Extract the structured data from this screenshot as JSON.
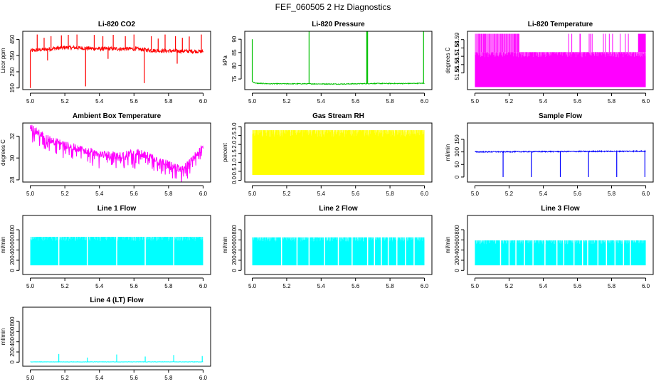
{
  "figure_title": "FEF_060505  2 Hz Diagnostics",
  "chart_data": [
    {
      "type": "line",
      "title": "Li-820 CO2",
      "ylabel": "Licor ppm",
      "color": "#ff0000",
      "x_range": [
        5.0,
        6.0
      ],
      "xticks": [
        5.0,
        5.2,
        5.4,
        5.6,
        5.8,
        6.0
      ],
      "xtick_labels": [
        "5.0",
        "5.2",
        "5.4",
        "5.6",
        "5.8",
        "6.0"
      ],
      "ylim": [
        140,
        500
      ],
      "yticks": [
        150,
        250,
        350,
        450
      ],
      "ytick_labels": [
        "150",
        "250",
        "350",
        "450"
      ],
      "base": [
        [
          5.0,
          380
        ],
        [
          5.1,
          390
        ],
        [
          5.2,
          400
        ],
        [
          5.3,
          397
        ],
        [
          5.4,
          392
        ],
        [
          5.5,
          392
        ],
        [
          5.6,
          392
        ],
        [
          5.7,
          382
        ],
        [
          5.8,
          378
        ],
        [
          5.9,
          378
        ],
        [
          6.0,
          375
        ]
      ],
      "noise": 12,
      "spikes": [
        [
          5.0,
          150
        ],
        [
          5.04,
          480
        ],
        [
          5.08,
          460
        ],
        [
          5.12,
          470
        ],
        [
          5.18,
          475
        ],
        [
          5.22,
          478
        ],
        [
          5.27,
          480
        ],
        [
          5.32,
          160
        ],
        [
          5.37,
          478
        ],
        [
          5.42,
          470
        ],
        [
          5.48,
          478
        ],
        [
          5.55,
          470
        ],
        [
          5.6,
          480
        ],
        [
          5.66,
          180
        ],
        [
          5.7,
          470
        ],
        [
          5.74,
          455
        ],
        [
          5.78,
          480
        ],
        [
          5.84,
          470
        ],
        [
          5.88,
          460
        ],
        [
          5.92,
          468
        ],
        [
          5.99,
          480
        ],
        [
          5.1,
          320
        ],
        [
          5.45,
          330
        ],
        [
          5.85,
          300
        ]
      ]
    },
    {
      "type": "line",
      "title": "Li-820 Pressure",
      "ylabel": "kPa",
      "color": "#00c000",
      "x_range": [
        5.0,
        6.0
      ],
      "xticks": [
        5.0,
        5.2,
        5.4,
        5.6,
        5.8,
        6.0
      ],
      "xtick_labels": [
        "5.0",
        "5.2",
        "5.4",
        "5.6",
        "5.8",
        "6.0"
      ],
      "ylim": [
        71,
        93
      ],
      "yticks": [
        75,
        80,
        85,
        90
      ],
      "ytick_labels": [
        "75",
        "80",
        "85",
        "90"
      ],
      "base": [
        [
          5.0,
          74
        ],
        [
          5.02,
          73.4
        ],
        [
          5.1,
          73.2
        ],
        [
          5.3,
          73.2
        ],
        [
          5.5,
          73.1
        ],
        [
          5.7,
          73.3
        ],
        [
          5.9,
          73.3
        ],
        [
          6.0,
          73.4
        ]
      ],
      "noise": 0.15,
      "spikes": [
        [
          5.0,
          90
        ],
        [
          5.33,
          93
        ],
        [
          5.665,
          93
        ],
        [
          5.67,
          93
        ],
        [
          5.995,
          93
        ]
      ]
    },
    {
      "type": "band",
      "title": "Li-820 Temperature",
      "ylabel": "degrees C",
      "color": "#ff00ff",
      "x_range": [
        5.0,
        6.0
      ],
      "xticks": [
        5.0,
        5.2,
        5.4,
        5.6,
        5.8,
        6.0
      ],
      "xtick_labels": [
        "5.0",
        "5.2",
        "5.4",
        "5.6",
        "5.8",
        "6.0"
      ],
      "ylim": [
        51.53,
        51.6
      ],
      "yticks": [
        51.55,
        51.56,
        51.57,
        51.58,
        51.59
      ],
      "ytick_labels": [
        "51.55",
        "51.56",
        "51.57",
        "51.58",
        "51.59"
      ],
      "band_low": 51.533,
      "band_high": 51.575,
      "spikes_high": 51.597
    },
    {
      "type": "line",
      "title": "Ambient Box Temperature",
      "ylabel": "degrees C",
      "color": "#ff00ff",
      "x_range": [
        5.0,
        6.0
      ],
      "xticks": [
        5.0,
        5.2,
        5.4,
        5.6,
        5.8,
        6.0
      ],
      "xtick_labels": [
        "5.0",
        "5.2",
        "5.4",
        "5.6",
        "5.8",
        "6.0"
      ],
      "ylim": [
        27.8,
        33.2
      ],
      "yticks": [
        28,
        30,
        32
      ],
      "ytick_labels": [
        "28",
        "30",
        "32"
      ],
      "base": [
        [
          5.0,
          32.8
        ],
        [
          5.05,
          32.3
        ],
        [
          5.1,
          31.8
        ],
        [
          5.2,
          31.2
        ],
        [
          5.3,
          30.8
        ],
        [
          5.4,
          30.4
        ],
        [
          5.5,
          30.2
        ],
        [
          5.62,
          30.5
        ],
        [
          5.7,
          30.1
        ],
        [
          5.8,
          29.4
        ],
        [
          5.87,
          29.0
        ],
        [
          5.92,
          29.5
        ],
        [
          5.97,
          30.5
        ],
        [
          6.0,
          31.0
        ]
      ],
      "noise": 0.35,
      "drop": 1.2
    },
    {
      "type": "band",
      "title": "Gas Stream RH",
      "ylabel": "percent",
      "color": "#ffff00",
      "x_range": [
        5.0,
        6.0
      ],
      "xticks": [
        5.0,
        5.2,
        5.4,
        5.6,
        5.8,
        6.0
      ],
      "xtick_labels": [
        "5.0",
        "5.2",
        "5.4",
        "5.6",
        "5.8",
        "6.0"
      ],
      "ylim": [
        -0.1,
        3.2
      ],
      "yticks": [
        0.0,
        0.5,
        1.0,
        1.5,
        2.0,
        2.5,
        3.0
      ],
      "ytick_labels": [
        "0.0",
        "0.5",
        "1.0",
        "1.5",
        "2.0",
        "2.5",
        "3.0"
      ],
      "band_low": 0.3,
      "band_high": 2.8
    },
    {
      "type": "line",
      "title": "Sample Flow",
      "ylabel": "ml/min",
      "color": "#0000ff",
      "x_range": [
        5.0,
        6.0
      ],
      "xticks": [
        5.0,
        5.2,
        5.4,
        5.6,
        5.8,
        6.0
      ],
      "xtick_labels": [
        "5.0",
        "5.2",
        "5.4",
        "5.6",
        "5.8",
        "6.0"
      ],
      "ylim": [
        -20,
        215
      ],
      "yticks": [
        0,
        50,
        100,
        150
      ],
      "ytick_labels": [
        "0",
        "50",
        "100",
        "150"
      ],
      "base": [
        [
          5.0,
          100
        ],
        [
          6.0,
          103
        ]
      ],
      "noise": 2,
      "spikes": [
        [
          5.165,
          0
        ],
        [
          5.33,
          0
        ],
        [
          5.5,
          0
        ],
        [
          5.665,
          0
        ],
        [
          5.83,
          0
        ],
        [
          5.995,
          0
        ]
      ]
    },
    {
      "type": "band",
      "title": "Line 1 Flow",
      "ylabel": "ml/min",
      "color": "#00ffff",
      "x_range": [
        5.0,
        6.0
      ],
      "xticks": [
        5.0,
        5.2,
        5.4,
        5.6,
        5.8,
        6.0
      ],
      "xtick_labels": [
        "5.0",
        "5.2",
        "5.4",
        "5.6",
        "5.8",
        "6.0"
      ],
      "ylim": [
        -80,
        1080
      ],
      "yticks": [
        0,
        200,
        400,
        600,
        800
      ],
      "ytick_labels": [
        "0",
        "200",
        "400",
        "600",
        "800"
      ],
      "band_low": 100,
      "band_high": 660,
      "gaps": [
        5.165,
        5.33,
        5.5,
        5.665,
        5.83
      ]
    },
    {
      "type": "band",
      "title": "Line 2 Flow",
      "ylabel": "ml/min",
      "color": "#00ffff",
      "x_range": [
        5.0,
        6.0
      ],
      "xticks": [
        5.0,
        5.2,
        5.4,
        5.6,
        5.8,
        6.0
      ],
      "xtick_labels": [
        "5.0",
        "5.2",
        "5.4",
        "5.6",
        "5.8",
        "6.0"
      ],
      "ylim": [
        -80,
        1080
      ],
      "yticks": [
        0,
        200,
        400,
        600,
        800
      ],
      "ytick_labels": [
        "0",
        "200",
        "400",
        "600",
        "800"
      ],
      "band_low": 100,
      "band_high": 650,
      "gaps": [
        5.17,
        5.26,
        5.33,
        5.42,
        5.5,
        5.58,
        5.67,
        5.71,
        5.75,
        5.79,
        5.84,
        5.89,
        5.94
      ]
    },
    {
      "type": "band",
      "title": "Line 3 Flow",
      "ylabel": "ml/min",
      "color": "#00ffff",
      "x_range": [
        5.0,
        6.0
      ],
      "xticks": [
        5.0,
        5.2,
        5.4,
        5.6,
        5.8,
        6.0
      ],
      "xtick_labels": [
        "5.0",
        "5.2",
        "5.4",
        "5.6",
        "5.8",
        "6.0"
      ],
      "ylim": [
        -80,
        1080
      ],
      "yticks": [
        0,
        200,
        400,
        600,
        800
      ],
      "ytick_labels": [
        "0",
        "200",
        "400",
        "600",
        "800"
      ],
      "band_low": 100,
      "band_high": 590,
      "gaps": [
        5.15,
        5.2,
        5.24,
        5.29,
        5.34,
        5.41,
        5.48,
        5.52,
        5.58,
        5.63,
        5.66,
        5.72,
        5.77,
        5.82,
        5.87,
        5.91
      ]
    },
    {
      "type": "line",
      "title": "Line 4 (LT) Flow",
      "ylabel": "ml/min",
      "color": "#00ffff",
      "x_range": [
        5.0,
        6.0
      ],
      "xticks": [
        5.0,
        5.2,
        5.4,
        5.6,
        5.8,
        6.0
      ],
      "xtick_labels": [
        "5.0",
        "5.2",
        "5.4",
        "5.6",
        "5.8",
        "6.0"
      ],
      "ylim": [
        -80,
        1080
      ],
      "yticks": [
        0,
        200,
        400,
        600,
        800
      ],
      "ytick_labels": [
        "0",
        "200",
        "400",
        "600",
        "800"
      ],
      "base": [
        [
          5.0,
          5
        ],
        [
          6.0,
          5
        ]
      ],
      "noise": 3,
      "spikes": [
        [
          5.165,
          160
        ],
        [
          5.33,
          90
        ],
        [
          5.5,
          150
        ],
        [
          5.665,
          110
        ],
        [
          5.83,
          140
        ],
        [
          5.995,
          120
        ]
      ]
    }
  ]
}
